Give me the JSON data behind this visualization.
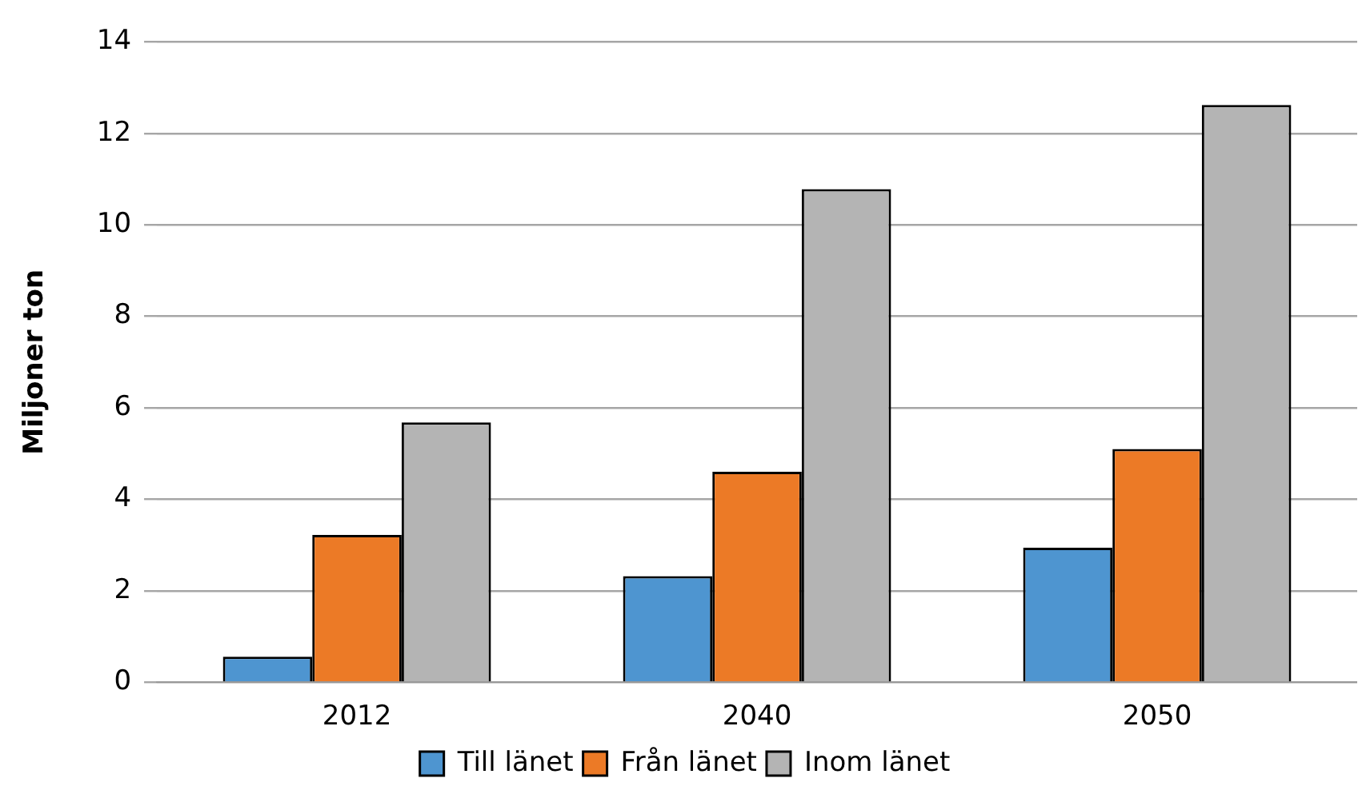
{
  "chart_data": {
    "type": "bar",
    "ylabel": "Miljoner ton",
    "categories": [
      "2012",
      "2040",
      "2050"
    ],
    "series": [
      {
        "name": "Till länet",
        "color": "#4e95d0",
        "values": [
          0.56,
          2.32,
          2.94
        ]
      },
      {
        "name": "Från länet",
        "color": "#ec7a26",
        "values": [
          3.22,
          4.6,
          5.1
        ]
      },
      {
        "name": "Inom länet",
        "color": "#b4b4b4",
        "values": [
          5.68,
          10.78,
          12.62
        ]
      }
    ],
    "ylim": [
      0,
      14
    ],
    "yticks": [
      0,
      2,
      4,
      6,
      8,
      10,
      12,
      14
    ],
    "grid": "y",
    "legend": "bottom"
  }
}
